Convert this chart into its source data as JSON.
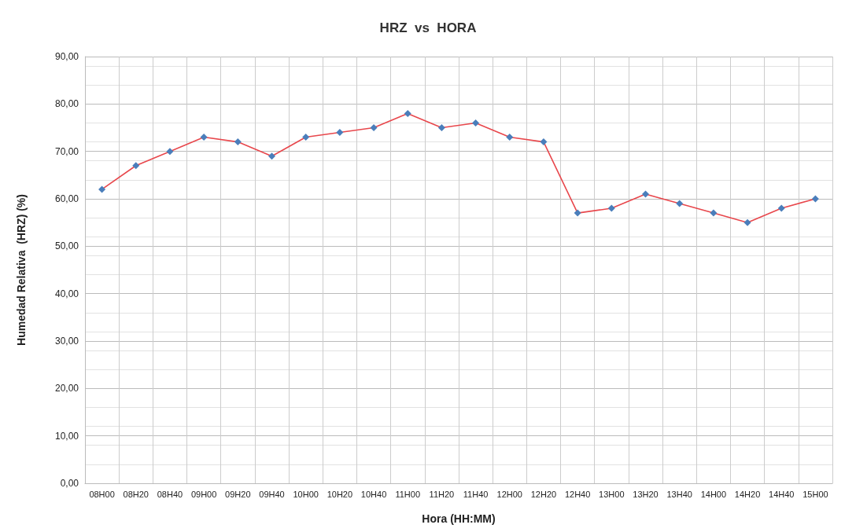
{
  "chart_data": {
    "type": "line",
    "title": "HRZ  vs  HORA",
    "xlabel": "Hora (HH:MM)",
    "ylabel": "Humedad Relativa  (HRZ) (%)",
    "categories": [
      "08H00",
      "08H20",
      "08H40",
      "09H00",
      "09H20",
      "09H40",
      "10H00",
      "10H20",
      "10H40",
      "11H00",
      "11H20",
      "11H40",
      "12H00",
      "12H20",
      "12H40",
      "13H00",
      "13H20",
      "13H40",
      "14H00",
      "14H20",
      "14H40",
      "15H00"
    ],
    "series": [
      {
        "color": "#e8474c",
        "values": [
          62,
          67,
          70,
          73,
          72,
          69,
          73,
          74,
          75,
          78,
          75,
          76,
          73,
          72,
          57,
          58,
          61,
          59,
          57,
          55,
          58,
          60
        ]
      }
    ],
    "ylim": [
      0,
      90
    ],
    "yticks": [
      {
        "value": 0,
        "label": "0,00"
      },
      {
        "value": 10,
        "label": "10,00"
      },
      {
        "value": 20,
        "label": "20,00"
      },
      {
        "value": 30,
        "label": "30,00"
      },
      {
        "value": 40,
        "label": "40,00"
      },
      {
        "value": 50,
        "label": "50,00"
      },
      {
        "value": 60,
        "label": "60,00"
      },
      {
        "value": 70,
        "label": "70,00"
      },
      {
        "value": 80,
        "label": "80,00"
      },
      {
        "value": 90,
        "label": "90,00"
      }
    ],
    "grid": true,
    "marker": "diamond",
    "line_style": "solid"
  }
}
